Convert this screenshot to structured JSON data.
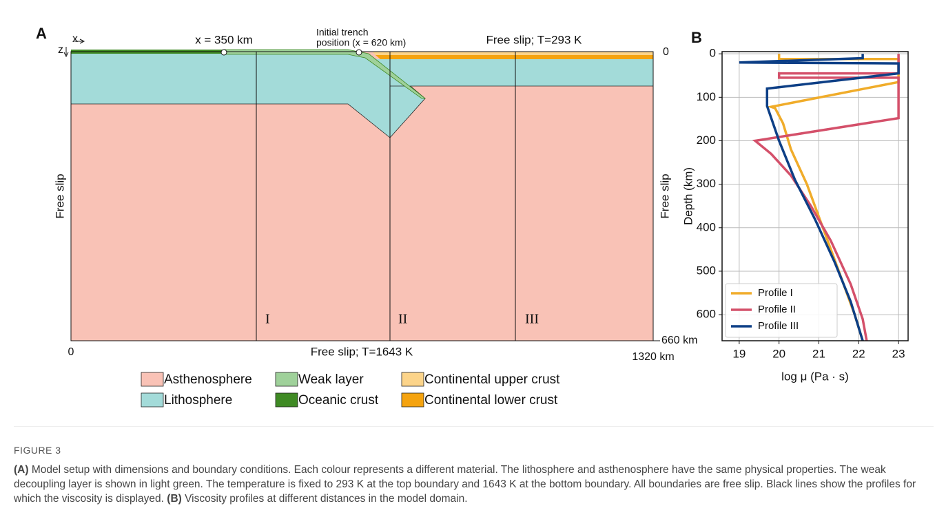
{
  "panel_a": {
    "label": "A",
    "x_axis": "x",
    "z_axis": "z",
    "marker_350": "x = 350 km",
    "trench_line1": "Initial trench",
    "trench_line2": "position (x = 620 km)",
    "top_boundary": "Free slip; T=293 K",
    "depth_zero": "0",
    "left_boundary": "Free slip",
    "right_boundary": "Free slip",
    "profiles": [
      "I",
      "II",
      "III"
    ],
    "depth_bottom": "660 km",
    "x_zero": "0",
    "bottom_boundary": "Free slip; T=1643 K",
    "x_end": "1320 km",
    "legend": [
      {
        "name": "Asthenosphere",
        "color": "#f9c2b6"
      },
      {
        "name": "Lithosphere",
        "color": "#a3dbd9"
      },
      {
        "name": "Weak layer",
        "color": "#9fd19a"
      },
      {
        "name": "Oceanic crust",
        "color": "#3f8a24"
      },
      {
        "name": "Continental upper crust",
        "color": "#fcd48a"
      },
      {
        "name": "Continental lower crust",
        "color": "#f5a30f"
      }
    ]
  },
  "chart_data": {
    "type": "line",
    "panel_label": "B",
    "x_label": "log μ (Pa · s)",
    "y_label": "Depth (km)",
    "xlim": [
      18.57,
      23.24
    ],
    "ylim": [
      660,
      -5
    ],
    "y_inverted": true,
    "xticks": [
      19,
      20,
      21,
      22,
      23
    ],
    "yticks": [
      0,
      100,
      200,
      300,
      400,
      500,
      600
    ],
    "grid": true,
    "legend_position": "lower left",
    "series": [
      {
        "name": "Profile I",
        "color": "#f0ac2a",
        "x": [
          20,
          20,
          23,
          23,
          19.8,
          19.9,
          20.1,
          20.3,
          20.7,
          21.1,
          21.5,
          21.9,
          22.1
        ],
        "values": [
          0,
          12,
          12,
          65,
          122,
          125,
          160,
          220,
          300,
          400,
          500,
          600,
          660
        ]
      },
      {
        "name": "Profile II",
        "color": "#d4506a",
        "x": [
          23,
          23,
          20,
          20,
          23,
          23,
          19.4,
          19.8,
          20.3,
          20.8,
          21.3,
          21.8,
          22.1,
          22.2
        ],
        "values": [
          0,
          45,
          45,
          55,
          55,
          148,
          200,
          230,
          280,
          350,
          430,
          530,
          610,
          660
        ]
      },
      {
        "name": "Profile III",
        "color": "#0d3f86",
        "x": [
          22.1,
          22.1,
          19,
          23,
          23,
          19.7,
          19.7,
          20,
          20.4,
          20.9,
          21.4,
          21.8,
          22.1
        ],
        "values": [
          0,
          10,
          20,
          22,
          45,
          80,
          120,
          200,
          290,
          380,
          480,
          570,
          660
        ]
      }
    ]
  },
  "caption": {
    "figure": "FIGURE 3",
    "label_a": "(A)",
    "text_a": "Model setup with dimensions and boundary conditions. Each colour represents a different material. The lithosphere and asthenosphere have the same physical properties. The weak decoupling layer is shown in light green. The temperature is fixed to 293 K at the top boundary and 1643 K at the bottom boundary. All boundaries are free slip. Black lines show the profiles for which the viscosity is displayed.",
    "label_b": "(B)",
    "text_b": "Viscosity profiles at different distances in the model domain."
  }
}
